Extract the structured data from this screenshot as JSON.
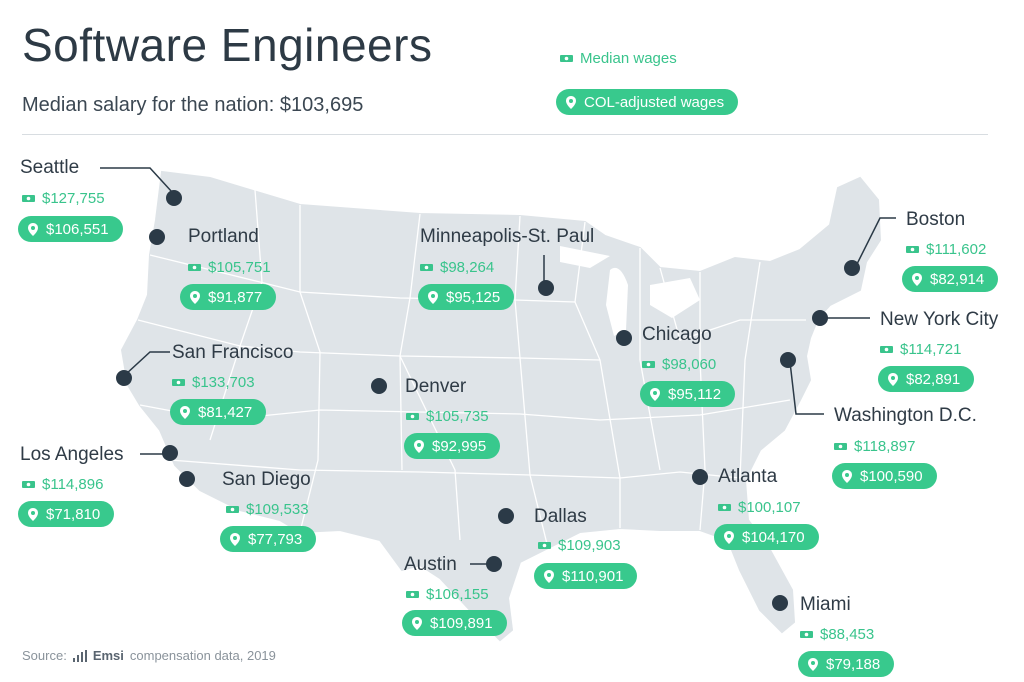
{
  "header": {
    "title": "Software Engineers",
    "subtitle": "Median salary for the nation: $103,695"
  },
  "legend": {
    "median_label": "Median wages",
    "col_label": "COL-adjusted wages"
  },
  "cities": [
    {
      "name": "Seattle",
      "median": "$127,755",
      "col": "$106,551"
    },
    {
      "name": "Portland",
      "median": "$105,751",
      "col": "$91,877"
    },
    {
      "name": "San Francisco",
      "median": "$133,703",
      "col": "$81,427"
    },
    {
      "name": "Los Angeles",
      "median": "$114,896",
      "col": "$71,810"
    },
    {
      "name": "San Diego",
      "median": "$109,533",
      "col": "$77,793"
    },
    {
      "name": "Denver",
      "median": "$105,735",
      "col": "$92,995"
    },
    {
      "name": "Minneapolis-St. Paul",
      "median": "$98,264",
      "col": "$95,125"
    },
    {
      "name": "Chicago",
      "median": "$98,060",
      "col": "$95,112"
    },
    {
      "name": "Dallas",
      "median": "$109,903",
      "col": "$110,901"
    },
    {
      "name": "Austin",
      "median": "$106,155",
      "col": "$109,891"
    },
    {
      "name": "Atlanta",
      "median": "$100,107",
      "col": "$104,170"
    },
    {
      "name": "Miami",
      "median": "$88,453",
      "col": "$79,188"
    },
    {
      "name": "Boston",
      "median": "$111,602",
      "col": "$82,914"
    },
    {
      "name": "New York City",
      "median": "$114,721",
      "col": "$82,891"
    },
    {
      "name": "Washington D.C.",
      "median": "$118,897",
      "col": "$100,590"
    }
  ],
  "source": {
    "prefix": "Source:",
    "brand": "Emsi",
    "suffix": "compensation data, 2019"
  },
  "colors": {
    "map_fill": "#dfe4e8",
    "border": "#ffffff",
    "marker": "#2b3a47",
    "accent": "#38c98d"
  },
  "icons": {
    "median": "cash-icon",
    "col": "location-pin-icon",
    "brand": "bar-chart-icon"
  }
}
